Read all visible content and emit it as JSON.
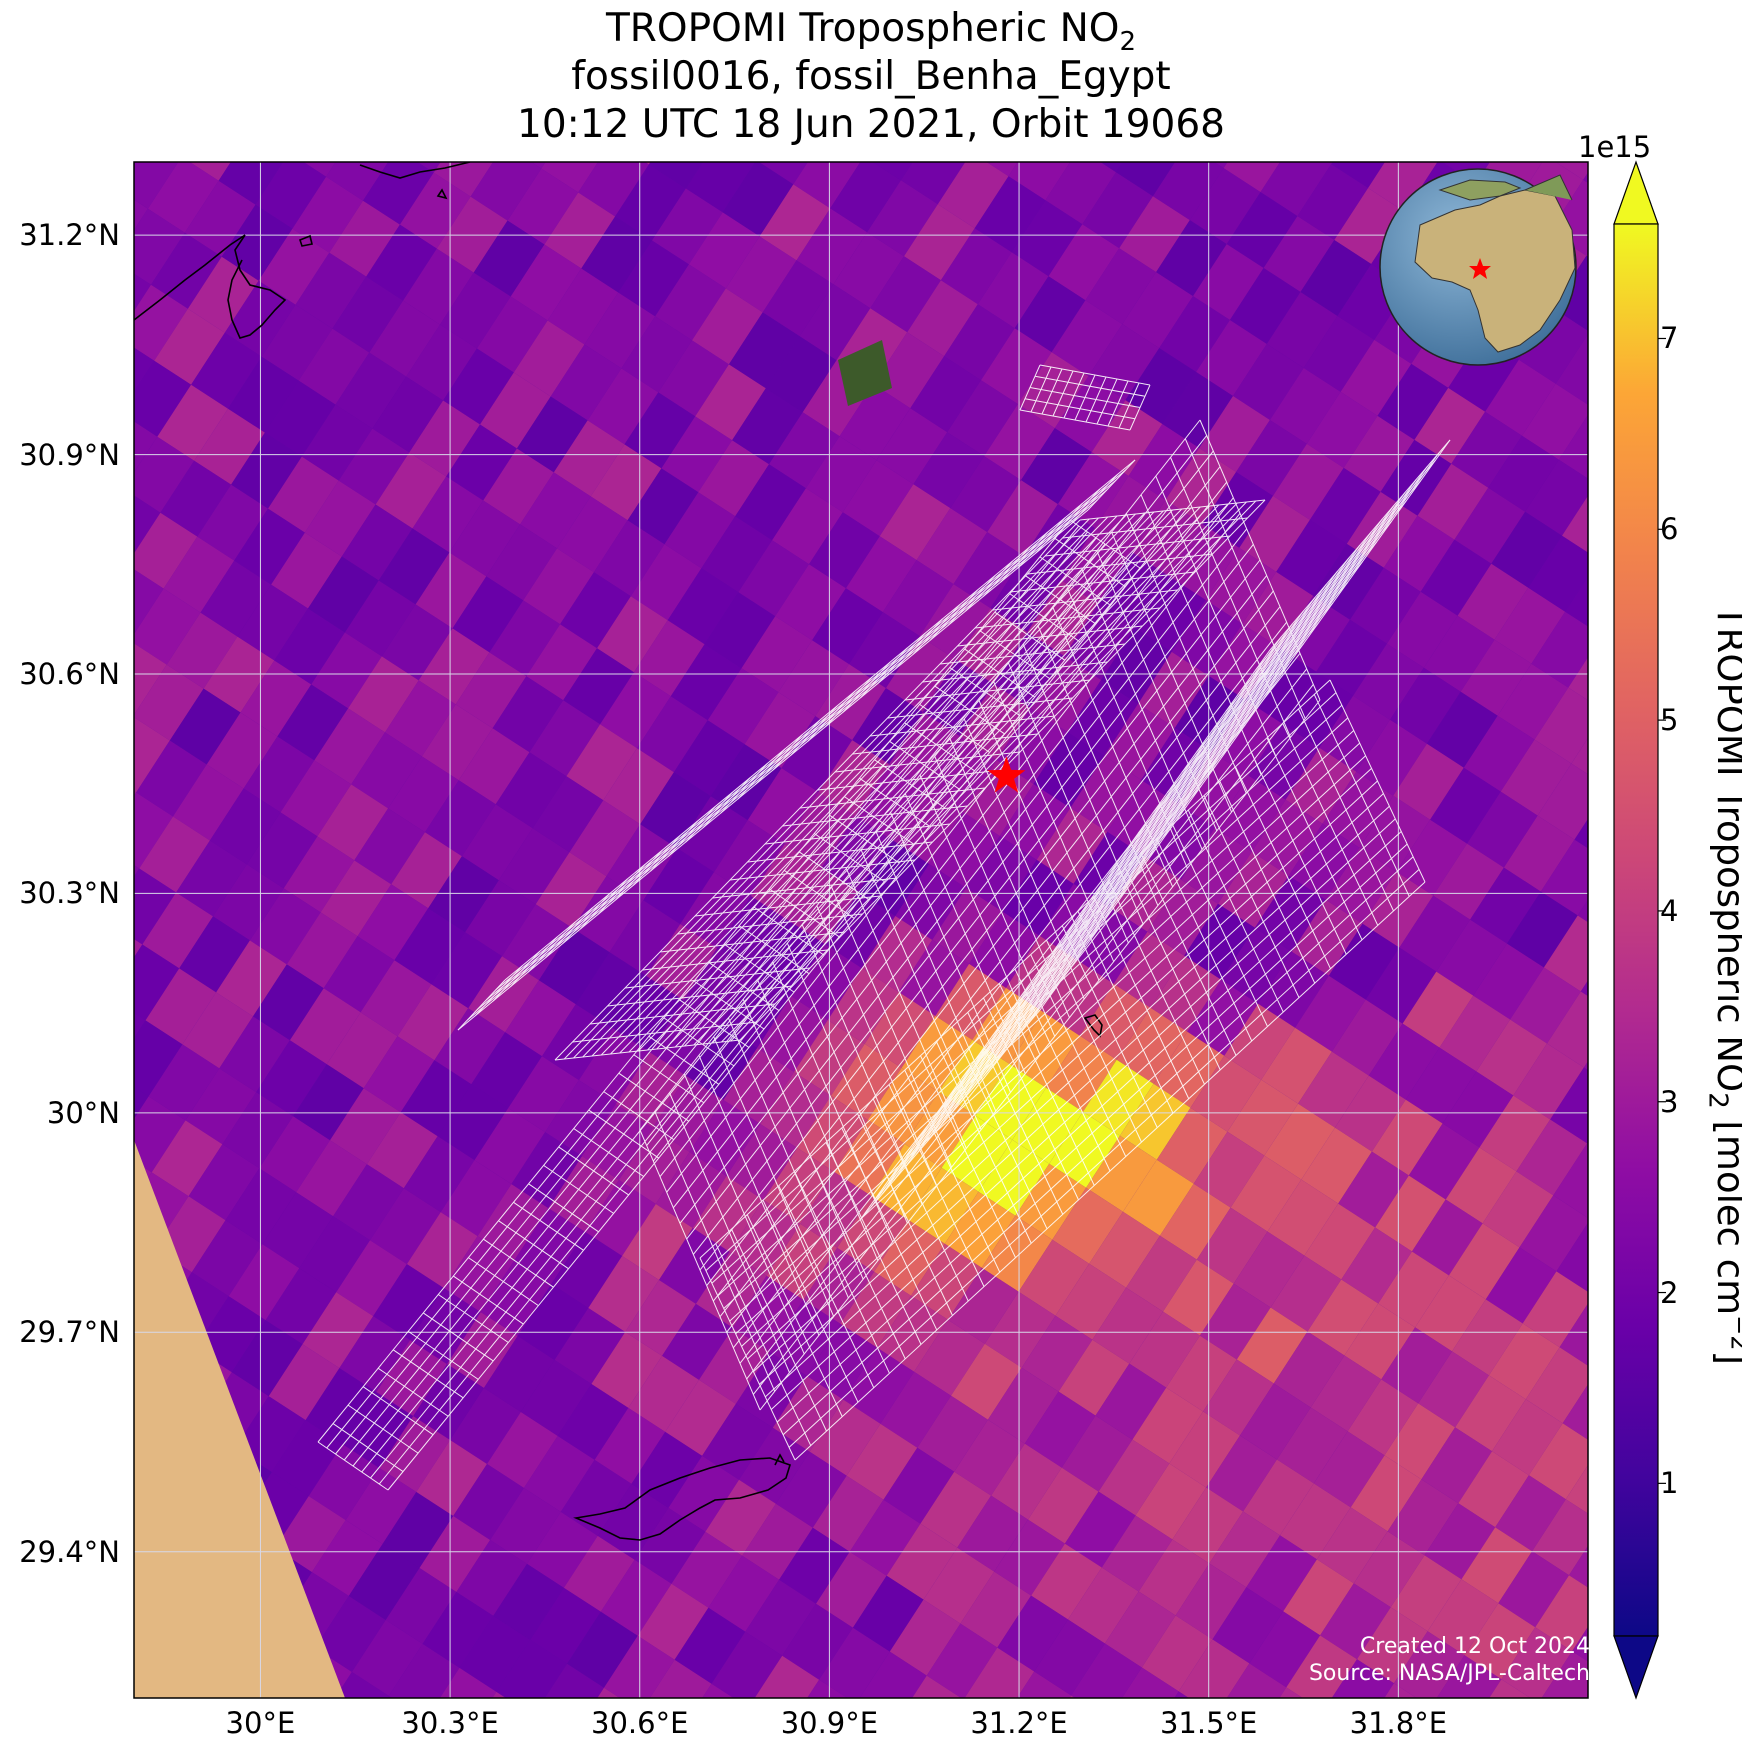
{
  "title": {
    "line1_main": "TROPOMI Tropospheric NO",
    "line1_sub": "2",
    "line2": "fossil0016, fossil_Benha_Egypt",
    "line3": "10:12 UTC 18 Jun 2021, Orbit 19068"
  },
  "map": {
    "lon_range": [
      29.8,
      32.1
    ],
    "lat_range": [
      29.2,
      31.3
    ],
    "lat_ticks": [
      {
        "value": 31.2,
        "label": "31.2°N"
      },
      {
        "value": 30.9,
        "label": "30.9°N"
      },
      {
        "value": 30.6,
        "label": "30.6°N"
      },
      {
        "value": 30.3,
        "label": "30.3°N"
      },
      {
        "value": 30.0,
        "label": "30°N"
      },
      {
        "value": 29.7,
        "label": "29.7°N"
      },
      {
        "value": 29.4,
        "label": "29.4°N"
      }
    ],
    "lon_ticks": [
      {
        "value": 30.0,
        "label": "30°E"
      },
      {
        "value": 30.3,
        "label": "30.3°E"
      },
      {
        "value": 30.6,
        "label": "30.6°E"
      },
      {
        "value": 30.9,
        "label": "30.9°E"
      },
      {
        "value": 31.2,
        "label": "31.2°E"
      },
      {
        "value": 31.5,
        "label": "31.5°E"
      },
      {
        "value": 31.8,
        "label": "31.8°E"
      }
    ],
    "target": {
      "lon": 31.18,
      "lat": 30.46,
      "color": "#ff0000",
      "icon": "star-icon"
    },
    "target_region": "Benha, Egypt",
    "inset": "globe-icon"
  },
  "colorbar": {
    "colormap": "plasma",
    "exponent_label": "1e15",
    "min": 0.2,
    "max": 7.6,
    "ticks": [
      1,
      2,
      3,
      4,
      5,
      6,
      7
    ],
    "label_main": "TROPOMI Tropospheric NO",
    "label_sub": "2",
    "label_units": " [molec cm",
    "label_exp": "−2",
    "label_close": "]"
  },
  "credits": {
    "created": "Created 12 Oct 2024",
    "source": "Source: NASA/JPL-Caltech"
  },
  "colors": {
    "star": "#ff0000",
    "grid": "#d8d8e8",
    "target_grid": "#ffffff"
  }
}
